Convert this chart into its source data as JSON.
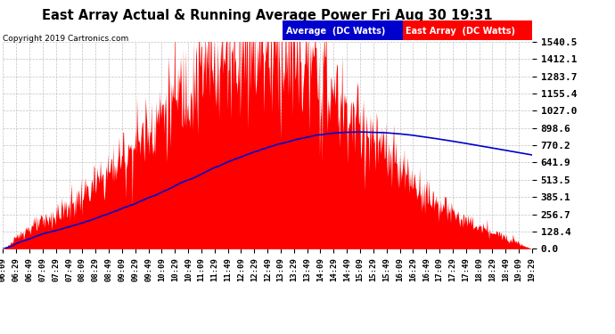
{
  "title": "East Array Actual & Running Average Power Fri Aug 30 19:31",
  "copyright": "Copyright 2019 Cartronics.com",
  "yticks": [
    0.0,
    128.4,
    256.7,
    385.1,
    513.5,
    641.9,
    770.2,
    898.6,
    1027.0,
    1155.4,
    1283.7,
    1412.1,
    1540.5
  ],
  "ymax": 1540.5,
  "ymin": 0.0,
  "east_array_color": "#FF0000",
  "average_color": "#0000CC",
  "background_color": "#FFFFFF",
  "plot_bg_color": "#FFFFFF",
  "grid_color": "#BBBBBB",
  "legend_avg_bg": "#0000CC",
  "legend_east_bg": "#FF0000",
  "legend_avg_text": "Average  (DC Watts)",
  "legend_east_text": "East Array  (DC Watts)",
  "x_start_min": 369,
  "x_end_min": 1169,
  "n_points": 800,
  "peak_min": 750,
  "peak_power": 1500,
  "avg_peak_min": 905,
  "avg_peak_power": 870,
  "avg_end_power": 648
}
